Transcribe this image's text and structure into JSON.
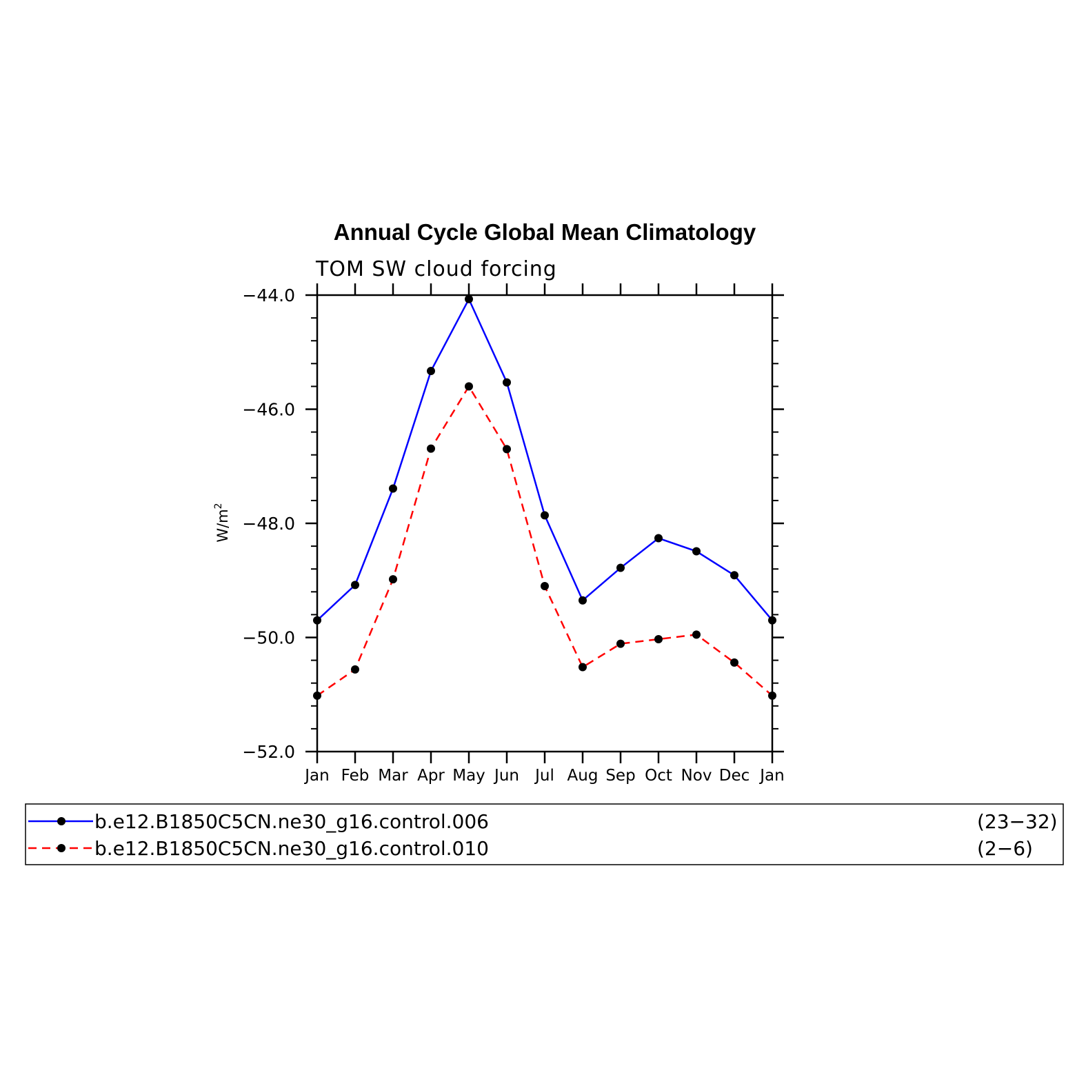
{
  "chart_data": {
    "type": "line",
    "title": "Annual Cycle Global Mean Climatology",
    "subtitle": "TOM SW cloud forcing",
    "ylabel": "W/m",
    "ylabel_sup": "2",
    "xlabel": "",
    "ylim": [
      -52.0,
      -44.0
    ],
    "yticks": [
      -44.0,
      -46.0,
      -48.0,
      -50.0,
      -52.0
    ],
    "ytick_labels": [
      "−44.0",
      "−46.0",
      "−48.0",
      "−50.0",
      "−52.0"
    ],
    "categories": [
      "Jan",
      "Feb",
      "Mar",
      "Apr",
      "May",
      "Jun",
      "Jul",
      "Aug",
      "Sep",
      "Oct",
      "Nov",
      "Dec",
      "Jan"
    ],
    "grid": false,
    "legend_position": "bottom",
    "series": [
      {
        "name": "b.e12.B1850C5CN.ne30_g16.control.006",
        "years": "(23−32)",
        "color": "#0000ff",
        "dash": "solid",
        "values": [
          -49.7,
          -49.08,
          -47.39,
          -45.33,
          -44.07,
          -45.53,
          -47.86,
          -49.35,
          -48.78,
          -48.26,
          -48.49,
          -48.91,
          -49.7
        ]
      },
      {
        "name": "b.e12.B1850C5CN.ne30_g16.control.010",
        "years": "(2−6)",
        "color": "#ff0000",
        "dash": "dashed",
        "values": [
          -51.02,
          -50.56,
          -48.98,
          -46.69,
          -45.6,
          -46.7,
          -49.1,
          -50.52,
          -50.11,
          -50.03,
          -49.95,
          -50.44,
          -51.02
        ]
      }
    ]
  }
}
